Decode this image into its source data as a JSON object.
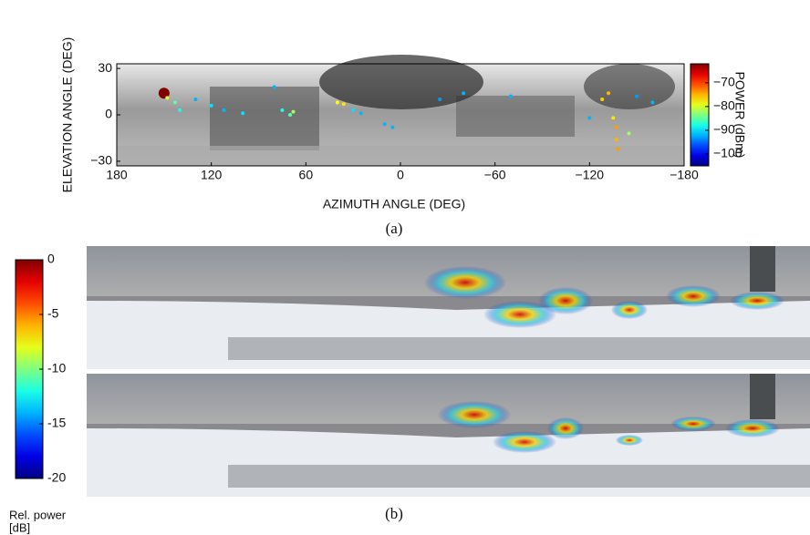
{
  "chart_data": [
    {
      "type": "scatter",
      "caption": "(a)",
      "x_label": "AZIMUTH ANGLE (DEG)",
      "y_label": "ELEVATION ANGLE (DEG)",
      "xlim": [
        180,
        -180
      ],
      "xticks": [
        180,
        120,
        60,
        0,
        {
          "value": -60,
          "label": "−60"
        },
        {
          "value": -120,
          "label": "−120"
        },
        {
          "value": -180,
          "label": "−180"
        }
      ],
      "ylim": [
        -33,
        33
      ],
      "yticks": [
        30,
        0,
        {
          "value": -30,
          "label": "−30"
        }
      ],
      "colormap": "jet",
      "colorbar": {
        "label": "POWER (dBm)",
        "clim": [
          -105,
          -62
        ],
        "ticks": [
          {
            "value": -70,
            "label": "−70"
          },
          {
            "value": -80,
            "label": "−80"
          },
          {
            "value": -90,
            "label": "−90"
          },
          {
            "value": -100,
            "label": "−100"
          }
        ]
      },
      "x": [
        150,
        148,
        143,
        140,
        130,
        120,
        112,
        100,
        80,
        75,
        70,
        68,
        40,
        36,
        30,
        25,
        10,
        5,
        -25,
        -40,
        -70,
        -128,
        -132,
        -135,
        -137,
        -137,
        -138,
        -145,
        -150,
        -160,
        -120
      ],
      "y": [
        14,
        11,
        8,
        3,
        10,
        6,
        3,
        1,
        18,
        3,
        0,
        2,
        8,
        7,
        3,
        1,
        -6,
        -8,
        10,
        14,
        12,
        10,
        14,
        -2,
        -8,
        -16,
        -22,
        -12,
        12,
        8,
        -2
      ],
      "values": [
        -62,
        -80,
        -85,
        -88,
        -92,
        -90,
        -92,
        -90,
        -92,
        -88,
        -85,
        -82,
        -78,
        -77,
        -90,
        -92,
        -92,
        -92,
        -93,
        -92,
        -92,
        -76,
        -75,
        -77,
        -74,
        -75,
        -74,
        -82,
        -93,
        -92,
        -92
      ]
    },
    {
      "type": "heatmap",
      "caption": "(b)",
      "colormap": "jet",
      "colorbar": {
        "label": [
          "Rel. power",
          "[dB]"
        ],
        "clim": [
          -20,
          0
        ],
        "ticks": [
          0,
          {
            "value": -5,
            "label": "-5"
          },
          {
            "value": -10,
            "label": "-10"
          },
          {
            "value": -15,
            "label": "-15"
          },
          {
            "value": -20,
            "label": "-20"
          }
        ]
      }
    }
  ]
}
